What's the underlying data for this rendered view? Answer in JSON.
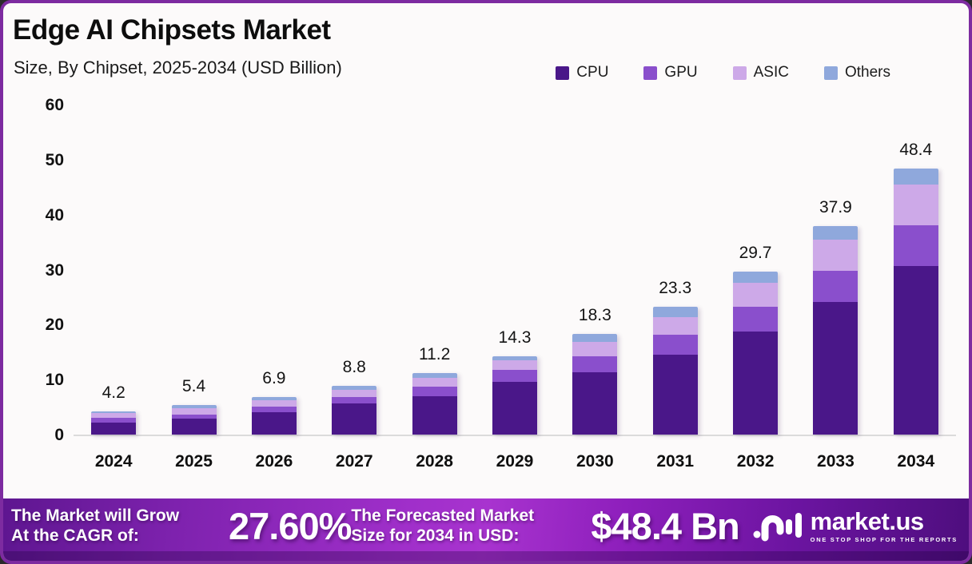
{
  "header": {
    "title": "Edge AI Chipsets Market",
    "subtitle": "Size, By Chipset, 2025-2034 (USD Billion)"
  },
  "chart_data": {
    "type": "bar",
    "stacked": true,
    "title": "Edge AI Chipsets Market Size, By Chipset, 2025-2034 (USD Billion)",
    "categories": [
      "2024",
      "2025",
      "2026",
      "2027",
      "2028",
      "2029",
      "2030",
      "2031",
      "2032",
      "2033",
      "2034"
    ],
    "series": [
      {
        "name": "CPU",
        "color": "#4A1789",
        "values": [
          2.2,
          2.9,
          4.1,
          5.6,
          7.0,
          9.6,
          11.4,
          14.5,
          18.7,
          24.1,
          30.6
        ]
      },
      {
        "name": "GPU",
        "color": "#8A4FCC",
        "values": [
          0.8,
          0.8,
          1.0,
          1.2,
          1.7,
          2.1,
          2.8,
          3.6,
          4.5,
          5.7,
          7.4
        ]
      },
      {
        "name": "ASIC",
        "color": "#CDA9E8",
        "values": [
          0.9,
          1.1,
          1.2,
          1.3,
          1.6,
          1.8,
          2.7,
          3.2,
          4.4,
          5.7,
          7.5
        ]
      },
      {
        "name": "Others",
        "color": "#8FA8DC",
        "values": [
          0.3,
          0.6,
          0.6,
          0.7,
          0.9,
          0.8,
          1.4,
          2.0,
          2.1,
          2.4,
          2.9
        ]
      }
    ],
    "totals": [
      4.2,
      5.4,
      6.9,
      8.8,
      11.2,
      14.3,
      18.3,
      23.3,
      29.7,
      37.9,
      48.4
    ],
    "xlabel": "",
    "ylabel": "",
    "ylim": [
      0,
      60
    ],
    "yticks": [
      0,
      10,
      20,
      30,
      40,
      50,
      60
    ],
    "grid": false,
    "legend_position": "top-right"
  },
  "footer": {
    "cagr_label": "The Market will Grow\nAt the CAGR of:",
    "cagr_value": "27.60%",
    "forecast_label": "The Forecasted Market\nSize for 2034 in USD:",
    "forecast_value": "$48.4 Bn",
    "brand": {
      "name": "market.us",
      "tagline": "ONE STOP SHOP FOR THE REPORTS"
    }
  }
}
